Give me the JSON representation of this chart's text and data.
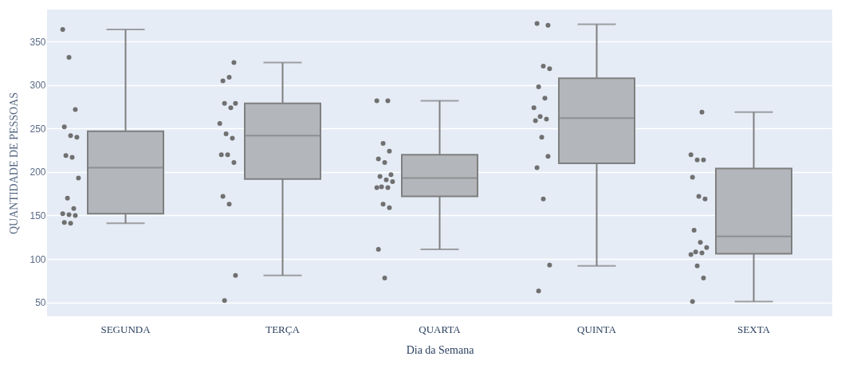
{
  "chart_data": {
    "type": "box",
    "xlabel": "Dia da Semana",
    "ylabel": "QUANTIDADE DE PESSOAS",
    "categories": [
      "SEGUNDA",
      "TERÇA",
      "QUARTA",
      "QUINTA",
      "SEXTA"
    ],
    "ylim": [
      34,
      387
    ],
    "yticks": [
      50,
      100,
      150,
      200,
      250,
      300,
      350
    ],
    "grid": "y",
    "series": [
      {
        "type": "box",
        "color": "#b3b6bb",
        "boxes": [
          {
            "low": 141,
            "q1": 152,
            "median": 205,
            "q3": 247,
            "high": 364
          },
          {
            "low": 81,
            "q1": 192,
            "median": 242,
            "q3": 279,
            "high": 326
          },
          {
            "low": 111,
            "q1": 172,
            "median": 193,
            "q3": 220,
            "high": 282
          },
          {
            "low": 92,
            "q1": 210,
            "median": 262,
            "q3": 308,
            "high": 370
          },
          {
            "low": 51,
            "q1": 106,
            "median": 126,
            "q3": 204,
            "high": 269
          }
        ]
      },
      {
        "type": "scatter",
        "color": "#707070",
        "x": [
          "SEGUNDA",
          "SEGUNDA",
          "SEGUNDA",
          "SEGUNDA",
          "SEGUNDA",
          "SEGUNDA",
          "SEGUNDA",
          "SEGUNDA",
          "SEGUNDA",
          "SEGUNDA",
          "SEGUNDA",
          "SEGUNDA",
          "SEGUNDA",
          "SEGUNDA",
          "SEGUNDA",
          "SEGUNDA",
          "TERÇA",
          "TERÇA",
          "TERÇA",
          "TERÇA",
          "TERÇA",
          "TERÇA",
          "TERÇA",
          "TERÇA",
          "TERÇA",
          "TERÇA",
          "TERÇA",
          "TERÇA",
          "TERÇA",
          "TERÇA",
          "TERÇA",
          "TERÇA",
          "QUARTA",
          "QUARTA",
          "QUARTA",
          "QUARTA",
          "QUARTA",
          "QUARTA",
          "QUARTA",
          "QUARTA",
          "QUARTA",
          "QUARTA",
          "QUARTA",
          "QUARTA",
          "QUARTA",
          "QUARTA",
          "QUARTA",
          "QUARTA",
          "QUARTA",
          "QUINTA",
          "QUINTA",
          "QUINTA",
          "QUINTA",
          "QUINTA",
          "QUINTA",
          "QUINTA",
          "QUINTA",
          "QUINTA",
          "QUINTA",
          "QUINTA",
          "QUINTA",
          "QUINTA",
          "QUINTA",
          "QUINTA",
          "QUINTA",
          "SEXTA",
          "SEXTA",
          "SEXTA",
          "SEXTA",
          "SEXTA",
          "SEXTA",
          "SEXTA",
          "SEXTA",
          "SEXTA",
          "SEXTA",
          "SEXTA",
          "SEXTA",
          "SEXTA",
          "SEXTA",
          "SEXTA",
          "SEXTA"
        ],
        "values": [
          364,
          332,
          272,
          252,
          242,
          240,
          219,
          217,
          193,
          170,
          158,
          152,
          151,
          150,
          142,
          141,
          326,
          305,
          309,
          279,
          279,
          274,
          256,
          244,
          239,
          220,
          220,
          211,
          172,
          163,
          81,
          52,
          282,
          282,
          233,
          224,
          215,
          211,
          197,
          195,
          191,
          189,
          183,
          182,
          182,
          163,
          159,
          111,
          78,
          369,
          371,
          322,
          319,
          298,
          285,
          274,
          264,
          261,
          259,
          240,
          218,
          205,
          169,
          93,
          63,
          269,
          220,
          214,
          214,
          194,
          172,
          169,
          133,
          119,
          113,
          108,
          107,
          105,
          92,
          78,
          51
        ]
      }
    ]
  }
}
